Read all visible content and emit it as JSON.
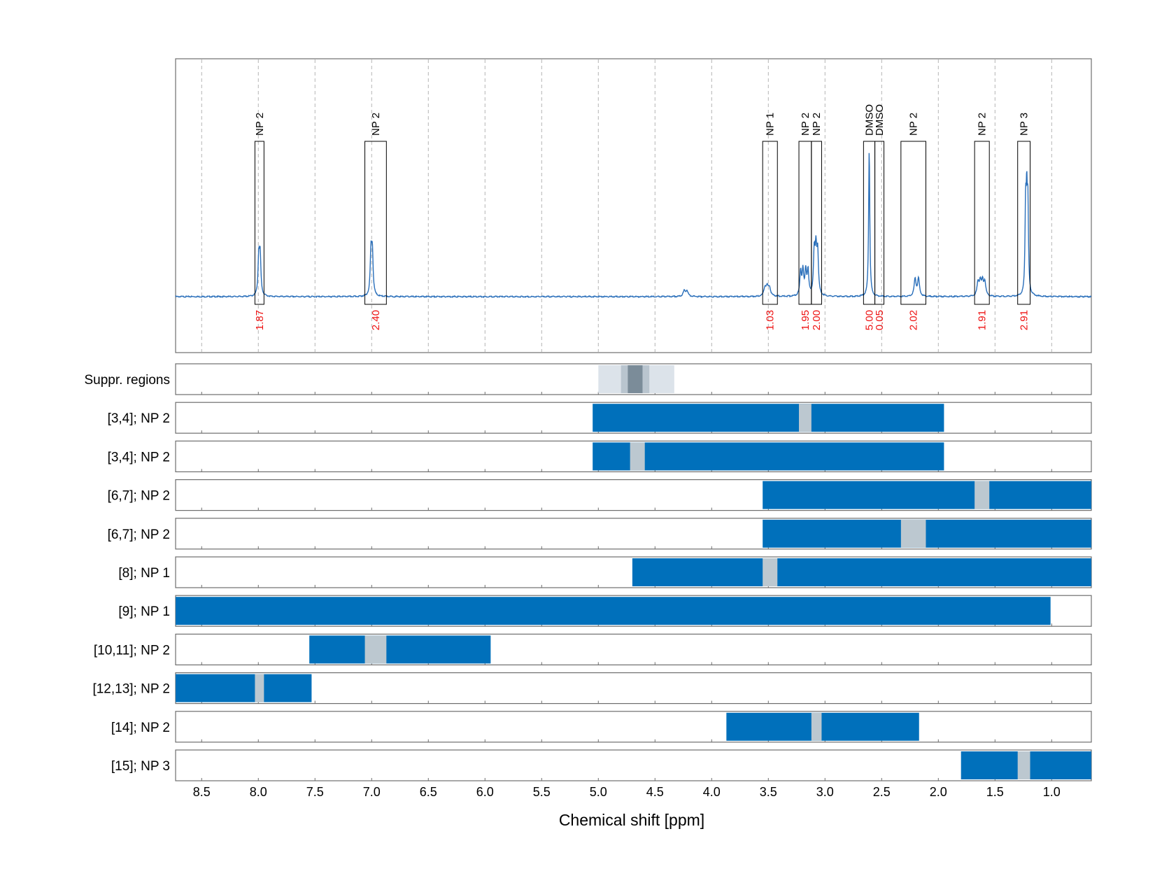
{
  "colors": {
    "spectrum": "#2a6fba",
    "bar": "#0070bb",
    "gap": "#bcc8d0",
    "suppr_light": "#dce3ea",
    "suppr_mid": "#b9c5cf",
    "suppr_dark": "#7b8c99",
    "integral_text": "#ee1111"
  },
  "chart_data": {
    "type": "nmr-spectrum-with-assignment-bars",
    "xlabel": "Chemical shift [ppm]",
    "xlim": [
      8.73,
      0.65
    ],
    "x_ticks": [
      8.5,
      8.0,
      7.5,
      7.0,
      6.5,
      6.0,
      5.5,
      5.0,
      4.5,
      4.0,
      3.5,
      3.0,
      2.5,
      2.0,
      1.5,
      1.0
    ],
    "x_tick_labels": [
      "8.5",
      "8.0",
      "7.5",
      "7.0",
      "6.5",
      "6.0",
      "5.5",
      "5.0",
      "4.5",
      "4.0",
      "3.5",
      "3.0",
      "2.5",
      "2.0",
      "1.5",
      "1.0"
    ],
    "grid": true,
    "spectrum_peaks": [
      {
        "ppm": 7.99,
        "height": 0.28,
        "width": 0.008,
        "multiplet": [
          -0.006,
          0.006
        ]
      },
      {
        "ppm": 7.0,
        "height": 0.31,
        "width": 0.008,
        "multiplet": [
          -0.006,
          0.006
        ]
      },
      {
        "ppm": 4.23,
        "height": 0.04,
        "width": 0.012,
        "multiplet": [
          -0.012,
          0.012
        ]
      },
      {
        "ppm": 3.51,
        "height": 0.06,
        "width": 0.012,
        "multiplet": [
          -0.02,
          0.0,
          0.02
        ]
      },
      {
        "ppm": 3.18,
        "height": 0.18,
        "width": 0.008,
        "multiplet": [
          -0.03,
          -0.01,
          0.015,
          0.035
        ]
      },
      {
        "ppm": 3.08,
        "height": 0.31,
        "width": 0.008,
        "multiplet": [
          -0.015,
          0.0,
          0.015
        ]
      },
      {
        "ppm": 2.61,
        "height": 0.98,
        "width": 0.006,
        "multiplet": [
          0.0
        ]
      },
      {
        "ppm": 2.19,
        "height": 0.13,
        "width": 0.01,
        "multiplet": [
          -0.015,
          0.015
        ]
      },
      {
        "ppm": 1.62,
        "height": 0.1,
        "width": 0.01,
        "multiplet": [
          -0.03,
          -0.01,
          0.01,
          0.03
        ]
      },
      {
        "ppm": 1.22,
        "height": 0.62,
        "width": 0.006,
        "multiplet": [
          -0.01,
          0.0,
          0.01
        ]
      }
    ],
    "peak_boxes": [
      {
        "label": "NP 2",
        "from": 8.03,
        "to": 7.95,
        "integral": "1.87"
      },
      {
        "label": "NP 2",
        "from": 7.06,
        "to": 6.87,
        "integral": "2.40"
      },
      {
        "label": "NP 1",
        "from": 3.55,
        "to": 3.42,
        "integral": "1.03"
      },
      {
        "label": "NP 2",
        "from": 3.23,
        "to": 3.12,
        "integral": "1.95"
      },
      {
        "label": "NP 2",
        "from": 3.12,
        "to": 3.03,
        "integral": "2.00"
      },
      {
        "label": "DMSO",
        "from": 2.66,
        "to": 2.56,
        "integral": "5.00"
      },
      {
        "label": "DMSO",
        "from": 2.56,
        "to": 2.48,
        "integral": "0.05"
      },
      {
        "label": "NP 2",
        "from": 2.33,
        "to": 2.11,
        "integral": "2.02"
      },
      {
        "label": "NP 2",
        "from": 1.68,
        "to": 1.55,
        "integral": "1.91"
      },
      {
        "label": "NP 3",
        "from": 1.3,
        "to": 1.19,
        "integral": "2.91"
      }
    ],
    "suppressed_regions": {
      "label": "Suppr. regions",
      "bands": [
        {
          "from": 5.0,
          "to": 4.33,
          "shade": "light"
        },
        {
          "from": 4.8,
          "to": 4.55,
          "shade": "mid"
        },
        {
          "from": 4.74,
          "to": 4.61,
          "shade": "dark"
        }
      ]
    },
    "rows": [
      {
        "label": "[3,4]; NP 2",
        "from": 5.05,
        "to": 1.95,
        "gap": [
          3.23,
          3.12
        ]
      },
      {
        "label": "[3,4]; NP 2",
        "from": 5.05,
        "to": 1.95,
        "gap": [
          4.72,
          4.59
        ]
      },
      {
        "label": "[6,7]; NP 2",
        "from": 3.55,
        "to": 0.65,
        "gap": [
          1.68,
          1.55
        ]
      },
      {
        "label": "[6,7]; NP 2",
        "from": 3.55,
        "to": 0.65,
        "gap": [
          2.33,
          2.11
        ]
      },
      {
        "label": "[8]; NP 1",
        "from": 4.7,
        "to": 0.65,
        "gap": [
          3.55,
          3.42
        ]
      },
      {
        "label": "[9]; NP 1",
        "from": 8.73,
        "to": 1.01,
        "gap": null
      },
      {
        "label": "[10,11]; NP 2",
        "from": 7.55,
        "to": 5.95,
        "gap": [
          7.06,
          6.87
        ]
      },
      {
        "label": "[12,13]; NP 2",
        "from": 8.73,
        "to": 7.53,
        "gap": [
          8.03,
          7.95
        ]
      },
      {
        "label": "[14]; NP 2",
        "from": 3.87,
        "to": 2.17,
        "gap": [
          3.12,
          3.03
        ]
      },
      {
        "label": "[15]; NP 3",
        "from": 1.8,
        "to": 0.65,
        "gap": [
          1.3,
          1.19
        ]
      }
    ]
  }
}
